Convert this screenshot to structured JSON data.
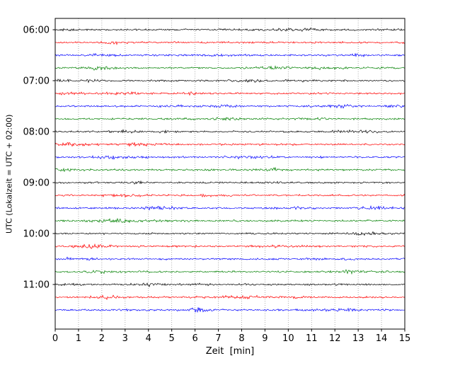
{
  "chart_data": {
    "type": "line",
    "subtype": "seismogram-dayplot",
    "title": "",
    "xlabel": "Zeit  [min]",
    "ylabel": "UTC (Lokalzeit = UTC + 02:00)",
    "xlim": [
      0,
      15
    ],
    "x_tick_labels": [
      "0",
      "1",
      "2",
      "3",
      "4",
      "5",
      "6",
      "7",
      "8",
      "9",
      "10",
      "11",
      "12",
      "13",
      "14",
      "15"
    ],
    "y_tick_labels": [
      "06:00",
      "07:00",
      "08:00",
      "09:00",
      "10:00",
      "11:00"
    ],
    "y_tick_trace_index": [
      0,
      4,
      8,
      12,
      16,
      20
    ],
    "trace_interval_min": 15,
    "grid": "dotted-vertical",
    "legend": "none",
    "colors_cycle": [
      "#000000",
      "#ff0000",
      "#0000ff",
      "#008000"
    ],
    "grid_color": "#999999",
    "frame_color": "#000000",
    "traces": [
      {
        "start": "06:00",
        "color": "#000000"
      },
      {
        "start": "06:15",
        "color": "#ff0000"
      },
      {
        "start": "06:30",
        "color": "#0000ff"
      },
      {
        "start": "06:45",
        "color": "#008000"
      },
      {
        "start": "07:00",
        "color": "#000000"
      },
      {
        "start": "07:15",
        "color": "#ff0000"
      },
      {
        "start": "07:30",
        "color": "#0000ff"
      },
      {
        "start": "07:45",
        "color": "#008000"
      },
      {
        "start": "08:00",
        "color": "#000000"
      },
      {
        "start": "08:15",
        "color": "#ff0000"
      },
      {
        "start": "08:30",
        "color": "#0000ff"
      },
      {
        "start": "08:45",
        "color": "#008000"
      },
      {
        "start": "09:00",
        "color": "#000000"
      },
      {
        "start": "09:15",
        "color": "#ff0000"
      },
      {
        "start": "09:30",
        "color": "#0000ff"
      },
      {
        "start": "09:45",
        "color": "#008000"
      },
      {
        "start": "10:00",
        "color": "#000000"
      },
      {
        "start": "10:15",
        "color": "#ff0000"
      },
      {
        "start": "10:30",
        "color": "#0000ff"
      },
      {
        "start": "10:45",
        "color": "#008000"
      },
      {
        "start": "11:00",
        "color": "#000000"
      },
      {
        "start": "11:15",
        "color": "#ff0000"
      },
      {
        "start": "11:30",
        "color": "#0000ff"
      }
    ],
    "noise": {
      "seed": 1234,
      "amplitude": 1.15
    },
    "events": [
      {
        "trace_index": 11,
        "minute": 9.3,
        "scale": 2.6,
        "width_min": 0.18
      },
      {
        "trace_index": 14,
        "minute": 4.2,
        "scale": 1.4,
        "width_min": 0.5
      },
      {
        "trace_index": 3,
        "minute": 2.3,
        "scale": 1.1,
        "width_min": 0.4
      }
    ]
  }
}
